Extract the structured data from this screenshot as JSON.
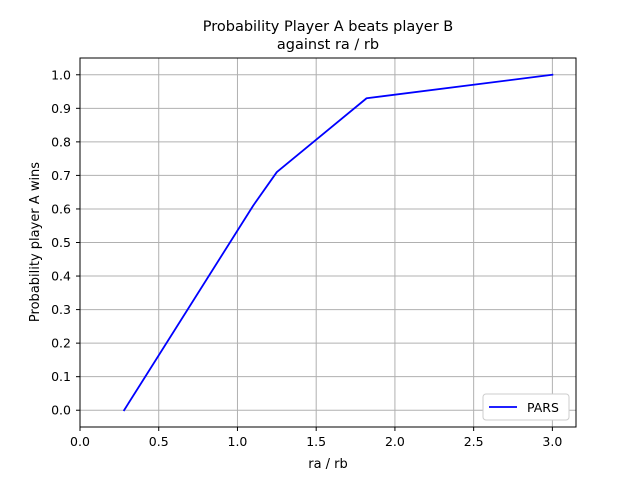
{
  "chart_data": {
    "type": "line",
    "title_lines": [
      "Probability Player A beats player B",
      "against ra / rb"
    ],
    "xlabel": "ra / rb",
    "ylabel": "Probability player A wins",
    "xlim": [
      0.0,
      3.15
    ],
    "ylim": [
      -0.05,
      1.05
    ],
    "x_ticks": [
      0.0,
      0.5,
      1.0,
      1.5,
      2.0,
      2.5,
      3.0
    ],
    "x_tick_labels": [
      "0.0",
      "0.5",
      "1.0",
      "1.5",
      "2.0",
      "2.5",
      "3.0"
    ],
    "y_ticks": [
      0.0,
      0.1,
      0.2,
      0.3,
      0.4,
      0.5,
      0.6,
      0.7,
      0.8,
      0.9,
      1.0
    ],
    "y_tick_labels": [
      "0.0",
      "0.1",
      "0.2",
      "0.3",
      "0.4",
      "0.5",
      "0.6",
      "0.7",
      "0.8",
      "0.9",
      "1.0"
    ],
    "grid": true,
    "legend_position": "lower-right",
    "series": [
      {
        "name": "PARS",
        "color": "#0000ff",
        "x": [
          0.28,
          1.1,
          1.25,
          1.82,
          3.0
        ],
        "y": [
          0.0,
          0.61,
          0.71,
          0.93,
          1.0
        ]
      }
    ]
  },
  "colors": {
    "grid": "#b0b0b0",
    "axes": "#000000",
    "background": "#ffffff"
  }
}
